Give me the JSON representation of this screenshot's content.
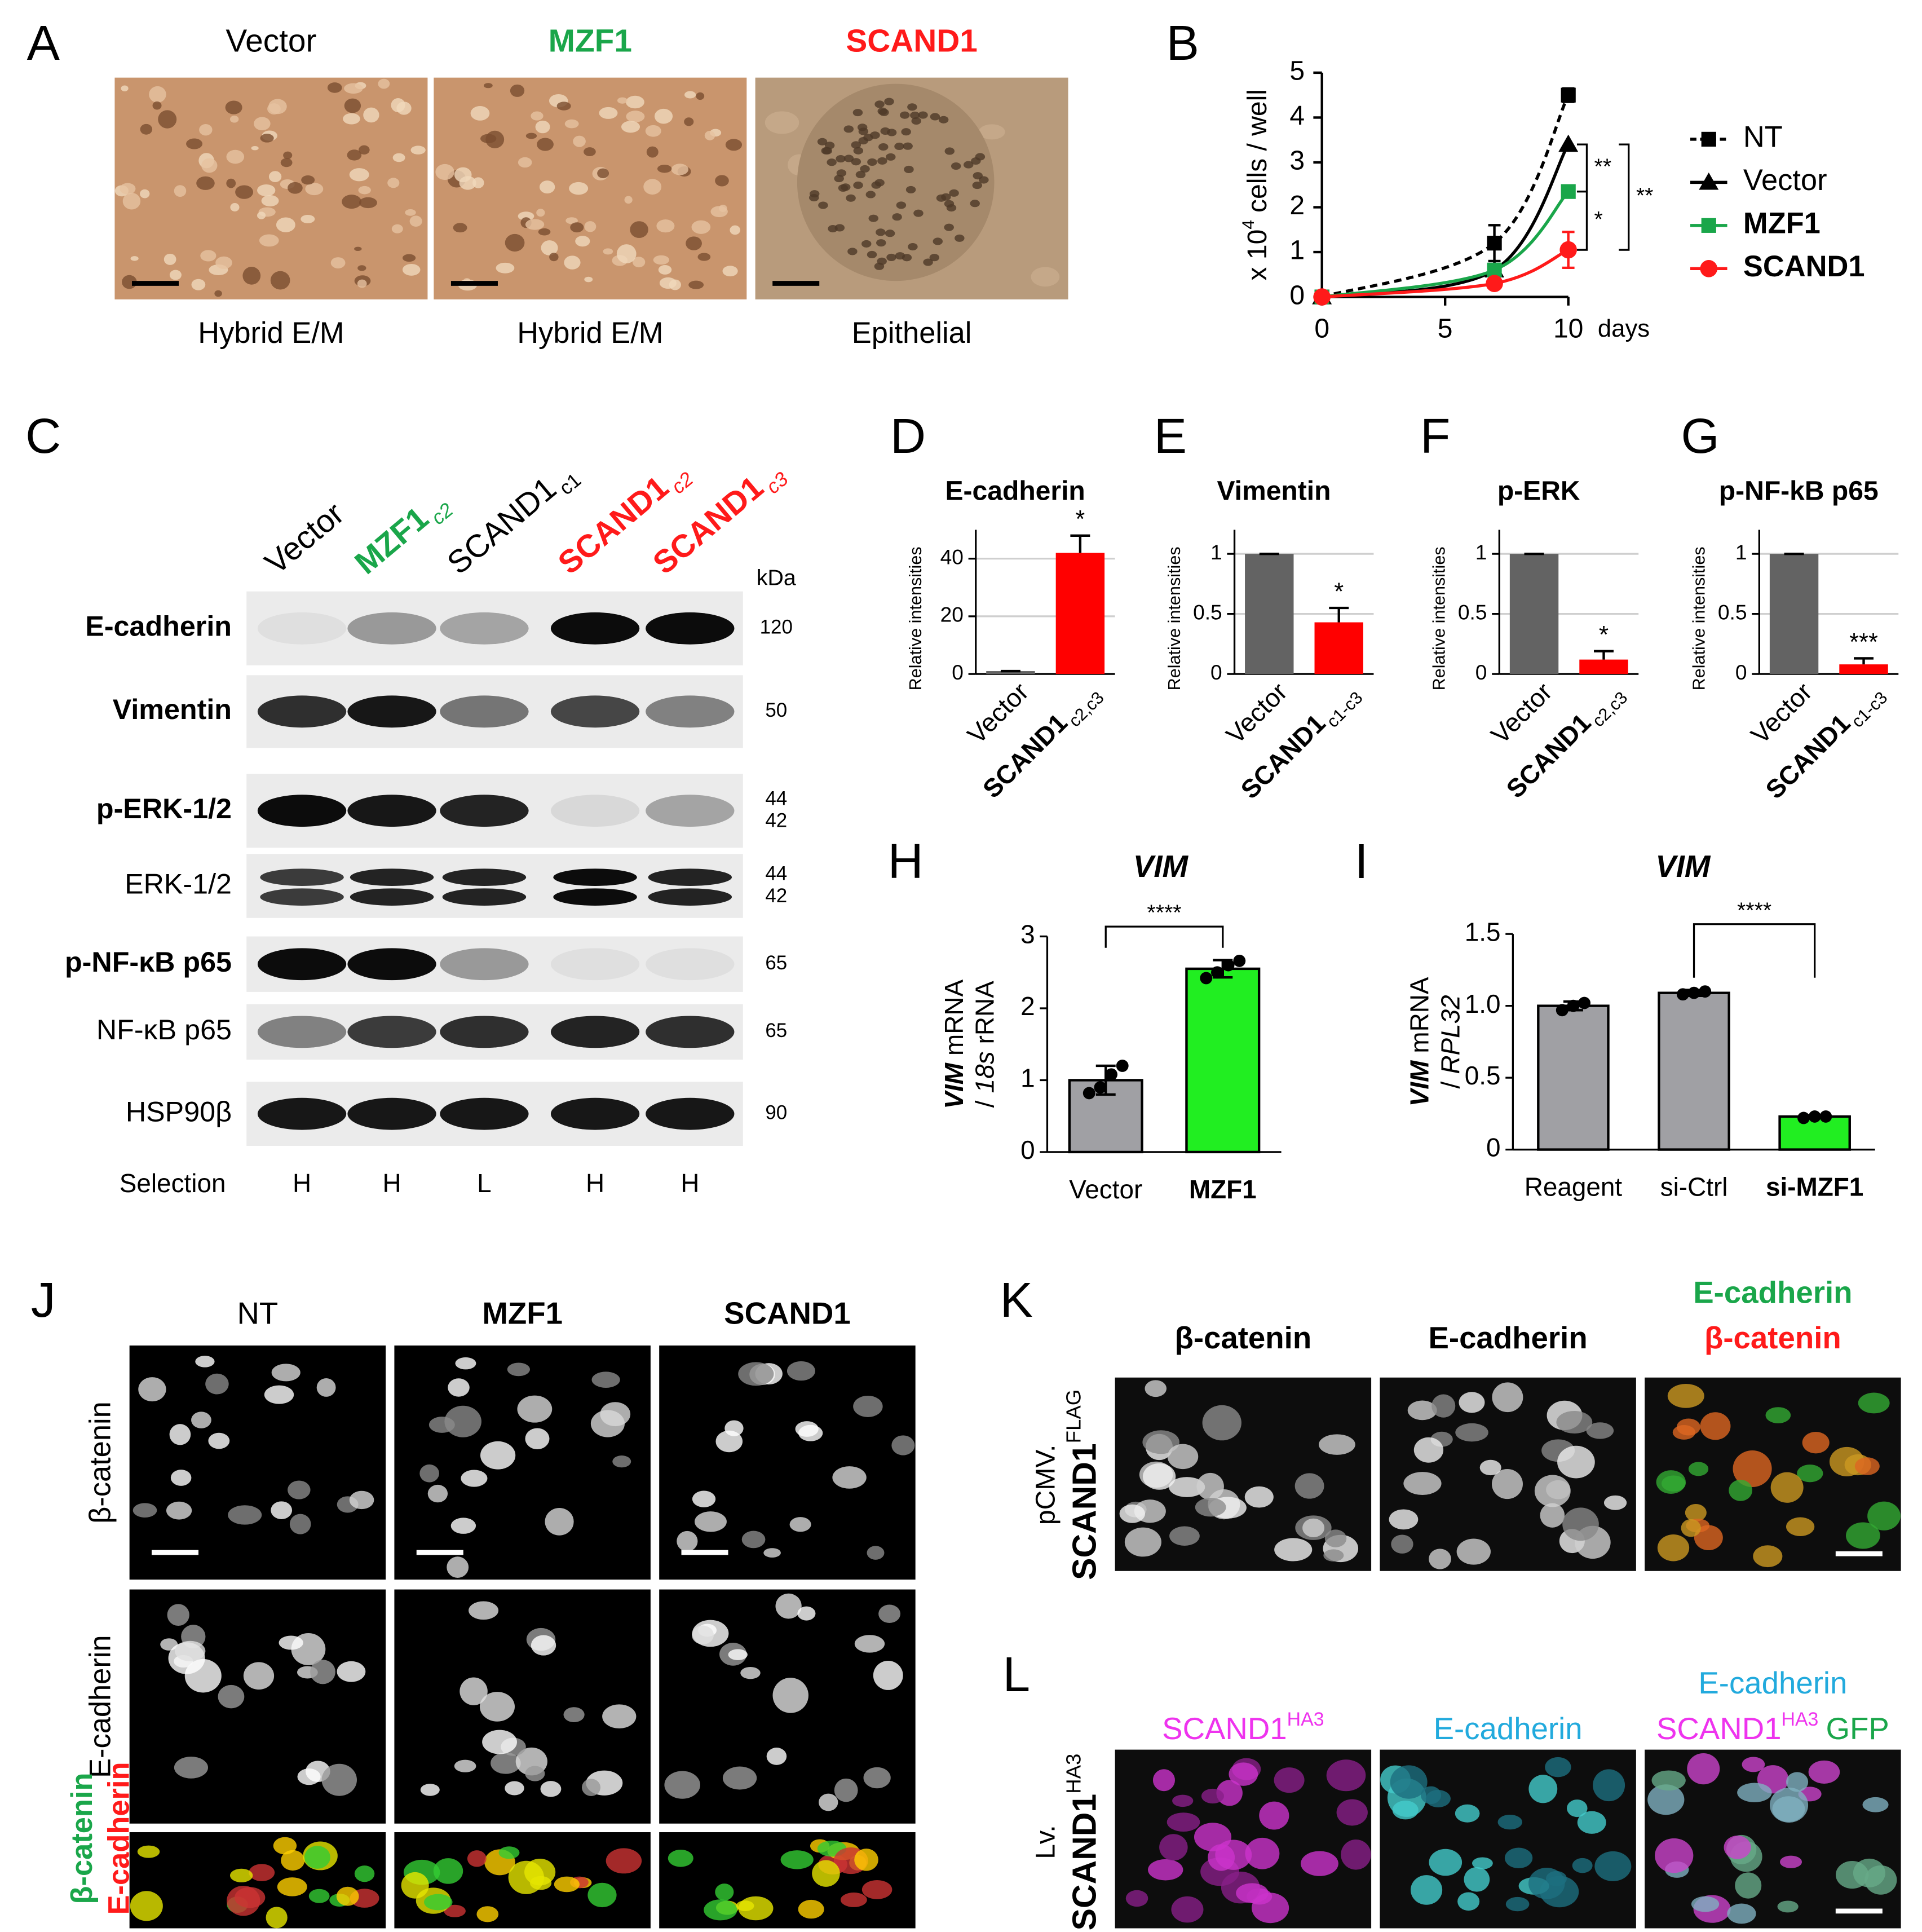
{
  "panel_letters": [
    "A",
    "B",
    "C",
    "D",
    "E",
    "F",
    "G",
    "H",
    "I",
    "J",
    "K",
    "L"
  ],
  "panel_a": {
    "images": [
      {
        "title": [
          {
            "text": "Vector"
          }
        ],
        "caption": "Hybrid E/M"
      },
      {
        "title": [
          {
            "text": "MZF1",
            "color": "#1aa64a",
            "bold": true
          }
        ],
        "caption": "Hybrid E/M"
      },
      {
        "title": [
          {
            "text": "SCAND1",
            "color": "#ff1a1a",
            "bold": true
          }
        ],
        "caption": "Epithelial"
      }
    ]
  },
  "chart_data": [
    {
      "type": "line",
      "x": [
        0,
        7,
        10
      ],
      "xlim": [
        0,
        10
      ],
      "xticks": [
        0,
        5,
        10
      ],
      "ylim": [
        0,
        5
      ],
      "yticks": [
        0,
        1,
        2,
        3,
        4,
        5
      ],
      "x_label": "days",
      "y_label": [
        {
          "text": "x 10"
        },
        {
          "text": "4",
          "sup": true
        },
        {
          "text": "cells / well"
        }
      ],
      "series": [
        {
          "name": "NT",
          "color": "#000000",
          "marker": "square",
          "dashed": true,
          "values": [
            0,
            1.2,
            4.5
          ],
          "errors": [
            0,
            0.4,
            0.15
          ]
        },
        {
          "name": "Vector",
          "color": "#000000",
          "marker": "triangle",
          "values": [
            0,
            0.6,
            3.4
          ]
        },
        {
          "name": "MZF1",
          "color": "#1aa64a",
          "marker": "square",
          "bold": true,
          "values": [
            0,
            0.6,
            2.35
          ]
        },
        {
          "name": "SCAND1",
          "color": "#ff1a1a",
          "marker": "circle",
          "bold": true,
          "values": [
            0,
            0.3,
            1.05
          ],
          "errors": [
            0,
            0.05,
            0.4
          ]
        }
      ],
      "annotations": [
        "**",
        "*",
        "**"
      ]
    },
    {
      "type": "bar",
      "title": "E-cadherin",
      "y_label": "Relative intensities",
      "categories": [
        "Vector",
        "SCAND1"
      ],
      "label_subscript": "c2,c3",
      "label_colors": [
        "#000000",
        "#ff1a1a"
      ],
      "label_bold": [
        false,
        true
      ],
      "values": [
        1,
        42
      ],
      "errors": [
        0,
        6
      ],
      "colors": [
        "#636363",
        "#ff0000"
      ],
      "ylim": [
        0,
        50
      ],
      "yticks": [
        0,
        20,
        40
      ],
      "grid": true,
      "annotation": "*"
    },
    {
      "type": "bar",
      "title": "Vimentin",
      "y_label": "Relative intensities",
      "categories": [
        "Vector",
        "SCAND1"
      ],
      "label_subscript": "c1-c3",
      "label_colors": [
        "#000000",
        "#ff1a1a"
      ],
      "label_bold": [
        false,
        true
      ],
      "values": [
        1,
        0.43
      ],
      "errors": [
        0,
        0.12
      ],
      "colors": [
        "#636363",
        "#ff0000"
      ],
      "ylim": [
        0,
        1.2
      ],
      "yticks": [
        0,
        0.5,
        1
      ],
      "grid": true,
      "annotation": "*"
    },
    {
      "type": "bar",
      "title": "p-ERK",
      "y_label": "Relative intensities",
      "categories": [
        "Vector",
        "SCAND1"
      ],
      "label_subscript": "c2,c3",
      "label_colors": [
        "#000000",
        "#ff1a1a"
      ],
      "label_bold": [
        false,
        true
      ],
      "values": [
        1,
        0.12
      ],
      "errors": [
        0,
        0.07
      ],
      "colors": [
        "#636363",
        "#ff0000"
      ],
      "ylim": [
        0,
        1.2
      ],
      "yticks": [
        0,
        0.5,
        1
      ],
      "grid": true,
      "annotation": "*"
    },
    {
      "type": "bar",
      "title": "p-NF-kB p65",
      "y_label": "Relative intensities",
      "categories": [
        "Vector",
        "SCAND1"
      ],
      "label_subscript": "c1-c3",
      "label_colors": [
        "#000000",
        "#ff1a1a"
      ],
      "label_bold": [
        false,
        true
      ],
      "values": [
        1,
        0.08
      ],
      "errors": [
        0,
        0.05
      ],
      "colors": [
        "#636363",
        "#ff0000"
      ],
      "ylim": [
        0,
        1.2
      ],
      "yticks": [
        0,
        0.5,
        1
      ],
      "grid": true,
      "annotation": "***"
    },
    {
      "type": "bar",
      "title": "VIM",
      "title_italic": true,
      "y_label_lines": [
        [
          {
            "text": "VIM",
            "italic": true,
            "bold": true
          },
          {
            "text": "mRNA"
          }
        ],
        [
          {
            "text": "/"
          },
          {
            "text": "18s",
            "italic": true
          },
          {
            "text": "rRNA"
          }
        ]
      ],
      "categories": [
        "Vector",
        "MZF1"
      ],
      "label_colors": [
        "#000000",
        "#1aa64a"
      ],
      "label_bold": [
        false,
        true
      ],
      "values": [
        1.0,
        2.55
      ],
      "errors": [
        0.2,
        0.12
      ],
      "points": [
        [
          0.82,
          0.9,
          1.08,
          1.2
        ],
        [
          2.42,
          2.5,
          2.6,
          2.66
        ]
      ],
      "colors": [
        "#a0a0a4",
        "#21ee21"
      ],
      "ylim": [
        0,
        3
      ],
      "yticks": [
        0,
        1,
        2,
        3
      ],
      "grid": false,
      "annotation": "****"
    },
    {
      "type": "bar",
      "title": "VIM",
      "title_italic": true,
      "y_label_lines": [
        [
          {
            "text": "VIM",
            "italic": true,
            "bold": true
          },
          {
            "text": "mRNA"
          }
        ],
        [
          {
            "text": "/"
          },
          {
            "text": "RPL32",
            "italic": true
          }
        ]
      ],
      "categories": [
        "Reagent",
        "si-Ctrl",
        "si-MZF1"
      ],
      "label_colors": [
        "#000000",
        "#000000",
        "#1aa64a"
      ],
      "label_bold": [
        false,
        false,
        true
      ],
      "values": [
        1.0,
        1.09,
        0.23
      ],
      "errors": [
        0.03,
        0.02,
        0.01
      ],
      "points": [
        [
          0.97,
          1.0,
          1.02
        ],
        [
          1.08,
          1.09,
          1.1
        ],
        [
          0.22,
          0.23,
          0.23
        ]
      ],
      "colors": [
        "#a0a0a4",
        "#a0a0a4",
        "#21ee21"
      ],
      "ylim": [
        0,
        1.5
      ],
      "yticks": [
        0,
        0.5,
        {
          "value": 1,
          "label": "1.0"
        },
        1.5
      ],
      "grid": false,
      "annotation": "****"
    }
  ],
  "panel_c": {
    "lanes": [
      [
        {
          "text": "Vector"
        }
      ],
      [
        {
          "text": "MZF1",
          "color": "#1aa64a",
          "bold": true
        },
        {
          "text": "c2",
          "color": "#1aa64a",
          "italic": true,
          "sub": true
        }
      ],
      [
        {
          "text": "SCAND1"
        },
        {
          "text": "c1",
          "sub": true
        }
      ],
      [
        {
          "text": "SCAND1",
          "color": "#ff1a1a",
          "bold": true
        },
        {
          "text": "c2",
          "color": "#ff1a1a",
          "italic": true,
          "sub": true
        }
      ],
      [
        {
          "text": "SCAND1",
          "color": "#ff1a1a",
          "bold": true
        },
        {
          "text": "c3",
          "color": "#ff1a1a",
          "italic": true,
          "sub": true
        }
      ]
    ],
    "kda_label": "kDa",
    "rows": [
      {
        "label": "E-cadherin",
        "bold": true,
        "kda": [
          120
        ]
      },
      {
        "label": "Vimentin",
        "bold": true,
        "kda": [
          50
        ]
      },
      {
        "label": "p-ERK-1/2",
        "bold": true,
        "kda": [
          44,
          42
        ]
      },
      {
        "label": "ERK-1/2",
        "kda": [
          44,
          42
        ]
      },
      {
        "label": "p-NF-κB p65",
        "bold": true,
        "kda": [
          65
        ]
      },
      {
        "label": "NF-κB p65",
        "kda": [
          65
        ]
      },
      {
        "label": "HSP90β",
        "kda": [
          90
        ]
      }
    ],
    "selection_label": "Selection",
    "selection": [
      "H",
      "H",
      "L",
      "H",
      "H"
    ]
  },
  "panel_j": {
    "columns": [
      [
        [
          {
            "text": "NT"
          }
        ]
      ],
      [
        [
          {
            "text": "MZF1",
            "bold": true
          }
        ]
      ],
      [
        [
          {
            "text": "SCAND1",
            "bold": true
          }
        ]
      ]
    ],
    "rows": [
      "β-catenin",
      "E-cadherin"
    ],
    "merge_lines": [
      [
        {
          "text": "β-catenin",
          "color": "#1aa64a",
          "bold": true
        }
      ],
      [
        {
          "text": "E-cadherin",
          "color": "#ff1a1a",
          "bold": true
        }
      ]
    ]
  },
  "panel_k": {
    "side_lines": [
      [
        {
          "text": "pCMV."
        }
      ],
      [
        {
          "text": "SCAND1",
          "bold": true
        },
        {
          "text": "FLAG",
          "sup": true
        }
      ]
    ],
    "columns": [
      [
        [
          {
            "text": "β-catenin",
            "bold": true
          }
        ]
      ],
      [
        [
          {
            "text": "E-cadherin",
            "bold": true
          }
        ]
      ],
      [
        [
          {
            "text": "E-cadherin",
            "color": "#1aa64a",
            "bold": true
          }
        ],
        [
          {
            "text": "β-catenin",
            "color": "#ff1a1a",
            "bold": true
          }
        ]
      ]
    ]
  },
  "panel_l": {
    "side_lines": [
      [
        {
          "text": "Lv."
        }
      ],
      [
        {
          "text": "SCAND1",
          "bold": true
        },
        {
          "text": "HA3",
          "sup": true
        }
      ]
    ],
    "columns": [
      [
        [
          {
            "text": "SCAND1",
            "color": "#ee33ee"
          },
          {
            "text": "HA3",
            "color": "#ee33ee",
            "sup": true
          }
        ]
      ],
      [
        [
          {
            "text": "E-cadherin",
            "color": "#22aadd"
          }
        ]
      ],
      [
        [
          {
            "text": "E-cadherin",
            "color": "#22aadd"
          }
        ],
        [
          {
            "text": "SCAND1",
            "color": "#ee33ee"
          },
          {
            "text": "HA3",
            "color": "#ee33ee",
            "sup": true
          },
          {
            "text": "GFP",
            "color": "#1aa64a"
          }
        ]
      ]
    ]
  }
}
